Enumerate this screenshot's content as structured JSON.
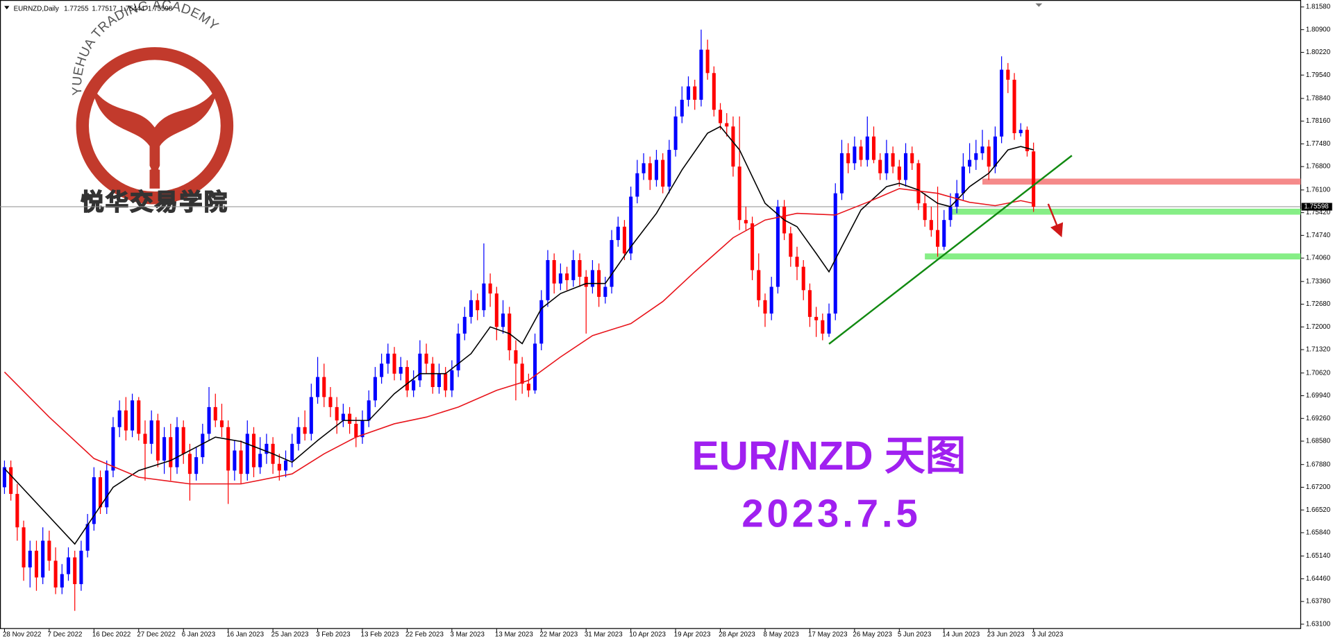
{
  "chart_data": {
    "type": "candlestick",
    "symbol": "EURNZD,Daily",
    "title": "EUR/NZD 天图",
    "subtitle": "2023.7.5",
    "logo_text": "YUEHUA TRADING ACADEMY",
    "logo_text_cn": "悦华交易学院",
    "up_color": "#0000ff",
    "down_color": "#ff0000",
    "candles": [
      [
        1.672,
        1.68,
        1.67,
        1.678
      ],
      [
        1.678,
        1.68,
        1.668,
        1.67
      ],
      [
        1.67,
        1.673,
        1.656,
        1.66
      ],
      [
        1.66,
        1.662,
        1.644,
        1.648
      ],
      [
        1.648,
        1.656,
        1.642,
        1.653
      ],
      [
        1.653,
        1.656,
        1.641,
        1.645
      ],
      [
        1.645,
        1.66,
        1.643,
        1.656
      ],
      [
        1.656,
        1.659,
        1.647,
        1.65
      ],
      [
        1.65,
        1.654,
        1.64,
        1.642
      ],
      [
        1.642,
        1.649,
        1.64,
        1.646
      ],
      [
        1.646,
        1.654,
        1.644,
        1.651
      ],
      [
        1.651,
        1.653,
        1.635,
        1.643
      ],
      [
        1.643,
        1.656,
        1.641,
        1.653
      ],
      [
        1.653,
        1.664,
        1.651,
        1.661
      ],
      [
        1.661,
        1.678,
        1.659,
        1.675
      ],
      [
        1.675,
        1.677,
        1.664,
        1.666
      ],
      [
        1.666,
        1.68,
        1.664,
        1.677
      ],
      [
        1.677,
        1.693,
        1.675,
        1.69
      ],
      [
        1.69,
        1.698,
        1.687,
        1.695
      ],
      [
        1.695,
        1.699,
        1.686,
        1.689
      ],
      [
        1.689,
        1.7,
        1.687,
        1.698
      ],
      [
        1.698,
        1.699,
        1.686,
        1.688
      ],
      [
        1.688,
        1.692,
        1.674,
        1.685
      ],
      [
        1.685,
        1.695,
        1.682,
        1.692
      ],
      [
        1.692,
        1.694,
        1.678,
        1.68
      ],
      [
        1.68,
        1.69,
        1.676,
        1.687
      ],
      [
        1.687,
        1.691,
        1.674,
        1.678
      ],
      [
        1.678,
        1.693,
        1.676,
        1.69
      ],
      [
        1.69,
        1.692,
        1.679,
        1.682
      ],
      [
        1.682,
        1.685,
        1.668,
        1.676
      ],
      [
        1.676,
        1.684,
        1.674,
        1.681
      ],
      [
        1.681,
        1.691,
        1.679,
        1.688
      ],
      [
        1.688,
        1.702,
        1.686,
        1.696
      ],
      [
        1.696,
        1.7,
        1.69,
        1.692
      ],
      [
        1.692,
        1.697,
        1.687,
        1.69
      ],
      [
        1.69,
        1.692,
        1.667,
        1.677
      ],
      [
        1.677,
        1.686,
        1.674,
        1.683
      ],
      [
        1.683,
        1.686,
        1.673,
        1.676
      ],
      [
        1.676,
        1.692,
        1.674,
        1.688
      ],
      [
        1.688,
        1.69,
        1.675,
        1.678
      ],
      [
        1.678,
        1.687,
        1.676,
        1.682
      ],
      [
        1.682,
        1.688,
        1.679,
        1.685
      ],
      [
        1.685,
        1.687,
        1.676,
        1.679
      ],
      [
        1.679,
        1.682,
        1.674,
        1.677
      ],
      [
        1.677,
        1.683,
        1.675,
        1.68
      ],
      [
        1.68,
        1.688,
        1.678,
        1.685
      ],
      [
        1.685,
        1.693,
        1.683,
        1.69
      ],
      [
        1.69,
        1.695,
        1.686,
        1.688
      ],
      [
        1.688,
        1.703,
        1.686,
        1.699
      ],
      [
        1.699,
        1.711,
        1.697,
        1.705
      ],
      [
        1.705,
        1.709,
        1.696,
        1.699
      ],
      [
        1.699,
        1.702,
        1.693,
        1.696
      ],
      [
        1.696,
        1.699,
        1.688,
        1.692
      ],
      [
        1.692,
        1.697,
        1.69,
        1.694
      ],
      [
        1.694,
        1.696,
        1.688,
        1.691
      ],
      [
        1.691,
        1.693,
        1.684,
        1.687
      ],
      [
        1.687,
        1.695,
        1.685,
        1.692
      ],
      [
        1.692,
        1.701,
        1.69,
        1.698
      ],
      [
        1.698,
        1.708,
        1.696,
        1.705
      ],
      [
        1.705,
        1.712,
        1.703,
        1.709
      ],
      [
        1.709,
        1.715,
        1.706,
        1.712
      ],
      [
        1.712,
        1.714,
        1.704,
        1.706
      ],
      [
        1.706,
        1.711,
        1.704,
        1.708
      ],
      [
        1.708,
        1.71,
        1.699,
        1.701
      ],
      [
        1.701,
        1.707,
        1.699,
        1.704
      ],
      [
        1.704,
        1.716,
        1.702,
        1.712
      ],
      [
        1.712,
        1.715,
        1.706,
        1.709
      ],
      [
        1.709,
        1.711,
        1.7,
        1.702
      ],
      [
        1.702,
        1.709,
        1.7,
        1.706
      ],
      [
        1.706,
        1.708,
        1.699,
        1.701
      ],
      [
        1.701,
        1.71,
        1.699,
        1.707
      ],
      [
        1.707,
        1.721,
        1.705,
        1.718
      ],
      [
        1.718,
        1.726,
        1.716,
        1.723
      ],
      [
        1.723,
        1.731,
        1.721,
        1.728
      ],
      [
        1.728,
        1.73,
        1.722,
        1.725
      ],
      [
        1.725,
        1.745,
        1.723,
        1.733
      ],
      [
        1.733,
        1.736,
        1.726,
        1.73
      ],
      [
        1.73,
        1.732,
        1.716,
        1.72
      ],
      [
        1.72,
        1.728,
        1.718,
        1.724
      ],
      [
        1.724,
        1.726,
        1.71,
        1.713
      ],
      [
        1.713,
        1.716,
        1.698,
        1.709
      ],
      [
        1.709,
        1.711,
        1.7,
        1.703
      ],
      [
        1.703,
        1.706,
        1.699,
        1.701
      ],
      [
        1.701,
        1.718,
        1.7,
        1.715
      ],
      [
        1.715,
        1.731,
        1.713,
        1.728
      ],
      [
        1.728,
        1.743,
        1.726,
        1.74
      ],
      [
        1.74,
        1.742,
        1.73,
        1.733
      ],
      [
        1.733,
        1.739,
        1.731,
        1.736
      ],
      [
        1.736,
        1.738,
        1.731,
        1.734
      ],
      [
        1.734,
        1.743,
        1.732,
        1.74
      ],
      [
        1.74,
        1.742,
        1.732,
        1.735
      ],
      [
        1.735,
        1.737,
        1.718,
        1.732
      ],
      [
        1.732,
        1.74,
        1.73,
        1.737
      ],
      [
        1.737,
        1.739,
        1.726,
        1.729
      ],
      [
        1.729,
        1.735,
        1.727,
        1.732
      ],
      [
        1.732,
        1.749,
        1.73,
        1.746
      ],
      [
        1.746,
        1.753,
        1.744,
        1.75
      ],
      [
        1.75,
        1.752,
        1.74,
        1.742
      ],
      [
        1.742,
        1.762,
        1.74,
        1.759
      ],
      [
        1.759,
        1.77,
        1.757,
        1.766
      ],
      [
        1.766,
        1.772,
        1.764,
        1.769
      ],
      [
        1.769,
        1.771,
        1.761,
        1.764
      ],
      [
        1.764,
        1.773,
        1.762,
        1.77
      ],
      [
        1.77,
        1.772,
        1.76,
        1.762
      ],
      [
        1.762,
        1.776,
        1.76,
        1.773
      ],
      [
        1.773,
        1.786,
        1.771,
        1.783
      ],
      [
        1.783,
        1.792,
        1.781,
        1.788
      ],
      [
        1.788,
        1.795,
        1.786,
        1.792
      ],
      [
        1.792,
        1.794,
        1.785,
        1.788
      ],
      [
        1.788,
        1.809,
        1.786,
        1.803
      ],
      [
        1.803,
        1.806,
        1.794,
        1.796
      ],
      [
        1.796,
        1.798,
        1.783,
        1.785
      ],
      [
        1.785,
        1.787,
        1.779,
        1.781
      ],
      [
        1.781,
        1.784,
        1.777,
        1.78
      ],
      [
        1.78,
        1.783,
        1.765,
        1.768
      ],
      [
        1.768,
        1.783,
        1.749,
        1.752
      ],
      [
        1.752,
        1.756,
        1.749,
        1.751
      ],
      [
        1.751,
        1.753,
        1.734,
        1.737
      ],
      [
        1.737,
        1.742,
        1.726,
        1.728
      ],
      [
        1.728,
        1.73,
        1.72,
        1.724
      ],
      [
        1.724,
        1.735,
        1.722,
        1.732
      ],
      [
        1.732,
        1.758,
        1.73,
        1.756
      ],
      [
        1.756,
        1.758,
        1.746,
        1.748
      ],
      [
        1.748,
        1.75,
        1.738,
        1.741
      ],
      [
        1.741,
        1.744,
        1.734,
        1.738
      ],
      [
        1.738,
        1.74,
        1.728,
        1.731
      ],
      [
        1.731,
        1.733,
        1.72,
        1.723
      ],
      [
        1.723,
        1.726,
        1.717,
        1.722
      ],
      [
        1.722,
        1.724,
        1.716,
        1.718
      ],
      [
        1.718,
        1.727,
        1.717,
        1.724
      ],
      [
        1.724,
        1.763,
        1.722,
        1.76
      ],
      [
        1.76,
        1.776,
        1.758,
        1.772
      ],
      [
        1.772,
        1.775,
        1.766,
        1.769
      ],
      [
        1.769,
        1.777,
        1.767,
        1.774
      ],
      [
        1.774,
        1.776,
        1.768,
        1.77
      ],
      [
        1.77,
        1.783,
        1.768,
        1.777
      ],
      [
        1.777,
        1.78,
        1.769,
        1.77
      ],
      [
        1.77,
        1.772,
        1.764,
        1.766
      ],
      [
        1.766,
        1.776,
        1.764,
        1.772
      ],
      [
        1.772,
        1.774,
        1.766,
        1.768
      ],
      [
        1.768,
        1.77,
        1.762,
        1.764
      ],
      [
        1.764,
        1.775,
        1.762,
        1.772
      ],
      [
        1.772,
        1.774,
        1.767,
        1.769
      ],
      [
        1.769,
        1.77,
        1.755,
        1.757
      ],
      [
        1.757,
        1.76,
        1.75,
        1.752
      ],
      [
        1.752,
        1.756,
        1.747,
        1.749
      ],
      [
        1.749,
        1.762,
        1.741,
        1.744
      ],
      [
        1.744,
        1.755,
        1.743,
        1.752
      ],
      [
        1.752,
        1.76,
        1.75,
        1.756
      ],
      [
        1.756,
        1.764,
        1.754,
        1.76
      ],
      [
        1.76,
        1.772,
        1.758,
        1.768
      ],
      [
        1.768,
        1.775,
        1.766,
        1.77
      ],
      [
        1.77,
        1.776,
        1.767,
        1.772
      ],
      [
        1.772,
        1.779,
        1.77,
        1.774
      ],
      [
        1.774,
        1.776,
        1.764,
        1.768
      ],
      [
        1.768,
        1.78,
        1.766,
        1.777
      ],
      [
        1.777,
        1.801,
        1.775,
        1.797
      ],
      [
        1.797,
        1.799,
        1.79,
        1.794
      ],
      [
        1.794,
        1.796,
        1.776,
        1.778
      ],
      [
        1.778,
        1.781,
        1.777,
        1.779
      ],
      [
        1.779,
        1.78,
        1.771,
        1.7726
      ],
      [
        1.77255,
        1.77517,
        1.75444,
        1.75598
      ]
    ],
    "moving_averages": [
      {
        "color": "#000000",
        "x": [
          0,
          11,
          17,
          21,
          26,
          33,
          37,
          42,
          45,
          49,
          53,
          57,
          61,
          65,
          69,
          73,
          76,
          79,
          81,
          84,
          87,
          91,
          94,
          98,
          102,
          106,
          110,
          112,
          115,
          119,
          122,
          124,
          127,
          129,
          131,
          134,
          138,
          140,
          143,
          146,
          148,
          151,
          154,
          157,
          159,
          161
        ],
        "values": [
          1.6776,
          1.655,
          1.672,
          1.677,
          1.68,
          1.687,
          1.6857,
          1.682,
          1.6795,
          1.686,
          1.692,
          1.692,
          1.7,
          1.706,
          1.706,
          1.712,
          1.72,
          1.718,
          1.715,
          1.7255,
          1.73,
          1.733,
          1.733,
          1.744,
          1.754,
          1.767,
          1.778,
          1.78,
          1.773,
          1.757,
          1.752,
          1.75,
          1.742,
          1.7365,
          1.744,
          1.755,
          1.762,
          1.763,
          1.761,
          1.757,
          1.756,
          1.762,
          1.766,
          1.773,
          1.774,
          1.773
        ]
      },
      {
        "color": "#e8141b",
        "x": [
          0,
          7,
          14,
          21,
          29,
          37,
          45,
          50,
          55,
          61,
          66,
          71,
          77,
          82,
          87,
          92,
          98,
          103,
          108,
          114,
          119,
          124,
          130,
          135,
          140,
          146,
          151,
          155,
          159,
          161
        ],
        "values": [
          1.7065,
          1.693,
          1.6806,
          1.675,
          1.673,
          1.673,
          1.676,
          1.682,
          1.687,
          1.691,
          1.693,
          1.696,
          1.701,
          1.704,
          1.711,
          1.7174,
          1.721,
          1.7276,
          1.7365,
          1.7467,
          1.752,
          1.754,
          1.7535,
          1.7573,
          1.7614,
          1.76,
          1.7573,
          1.7563,
          1.7578,
          1.757
        ]
      }
    ],
    "levels": [
      {
        "from": 153,
        "value": 1.7635,
        "color": "#f58a8a"
      },
      {
        "from": 148,
        "value": 1.7545,
        "color": "#86ee86"
      },
      {
        "from": 144,
        "value": 1.7411,
        "color": "#86ee86"
      }
    ],
    "trendline": {
      "color": "#118a11",
      "x": [
        129,
        167
      ],
      "values": [
        1.7149,
        1.7713
      ]
    },
    "current_price": 1.75598,
    "xlim": [
      -0.7,
      202.8
    ],
    "xticks": [
      {
        "value": 0,
        "label": "28 Nov 2022"
      },
      {
        "value": 7,
        "label": "7 Dec 2022"
      },
      {
        "value": 14,
        "label": "16 Dec 2022"
      },
      {
        "value": 21,
        "label": "27 Dec 2022"
      },
      {
        "value": 28,
        "label": "6 Jan 2023"
      },
      {
        "value": 35,
        "label": "16 Jan 2023"
      },
      {
        "value": 42,
        "label": "25 Jan 2023"
      },
      {
        "value": 49,
        "label": "3 Feb 2023"
      },
      {
        "value": 56,
        "label": "13 Feb 2023"
      },
      {
        "value": 63,
        "label": "22 Feb 2023"
      },
      {
        "value": 70,
        "label": "3 Mar 2023"
      },
      {
        "value": 77,
        "label": "13 Mar 2023"
      },
      {
        "value": 84,
        "label": "22 Mar 2023"
      },
      {
        "value": 91,
        "label": "31 Mar 2023"
      },
      {
        "value": 98,
        "label": "10 Apr 2023"
      },
      {
        "value": 105,
        "label": "19 Apr 2023"
      },
      {
        "value": 112,
        "label": "28 Apr 2023"
      },
      {
        "value": 119,
        "label": "8 May 2023"
      },
      {
        "value": 126,
        "label": "17 May 2023"
      },
      {
        "value": 133,
        "label": "26 May 2023"
      },
      {
        "value": 140,
        "label": "5 Jun 2023"
      },
      {
        "value": 147,
        "label": "14 Jun 2023"
      },
      {
        "value": 154,
        "label": "23 Jun 2023"
      },
      {
        "value": 161,
        "label": "3 Jul 2023"
      }
    ],
    "ylim": [
      1.6297,
      1.8171
    ],
    "yticks": [
      {
        "value": 1.631,
        "label": "1.63100"
      },
      {
        "value": 1.6378,
        "label": "1.63780"
      },
      {
        "value": 1.6446,
        "label": "1.64460"
      },
      {
        "value": 1.6514,
        "label": "1.65140"
      },
      {
        "value": 1.6584,
        "label": "1.65840"
      },
      {
        "value": 1.6652,
        "label": "1.66520"
      },
      {
        "value": 1.672,
        "label": "1.67200"
      },
      {
        "value": 1.6788,
        "label": "1.67880"
      },
      {
        "value": 1.6858,
        "label": "1.68580"
      },
      {
        "value": 1.6926,
        "label": "1.69260"
      },
      {
        "value": 1.6994,
        "label": "1.69940"
      },
      {
        "value": 1.7062,
        "label": "1.70620"
      },
      {
        "value": 1.7132,
        "label": "1.71320"
      },
      {
        "value": 1.72,
        "label": "1.72000"
      },
      {
        "value": 1.7268,
        "label": "1.72680"
      },
      {
        "value": 1.7336,
        "label": "1.73360"
      },
      {
        "value": 1.7406,
        "label": "1.74060"
      },
      {
        "value": 1.7474,
        "label": "1.74740"
      },
      {
        "value": 1.7542,
        "label": "1.75420"
      },
      {
        "value": 1.761,
        "label": "1.76100"
      },
      {
        "value": 1.768,
        "label": "1.76800"
      },
      {
        "value": 1.7748,
        "label": "1.77480"
      },
      {
        "value": 1.7816,
        "label": "1.78160"
      },
      {
        "value": 1.7884,
        "label": "1.78840"
      },
      {
        "value": 1.7954,
        "label": "1.79540"
      },
      {
        "value": 1.8022,
        "label": "1.80220"
      },
      {
        "value": 1.809,
        "label": "1.80900"
      },
      {
        "value": 1.8158,
        "label": "1.81580"
      }
    ],
    "grid": false
  }
}
